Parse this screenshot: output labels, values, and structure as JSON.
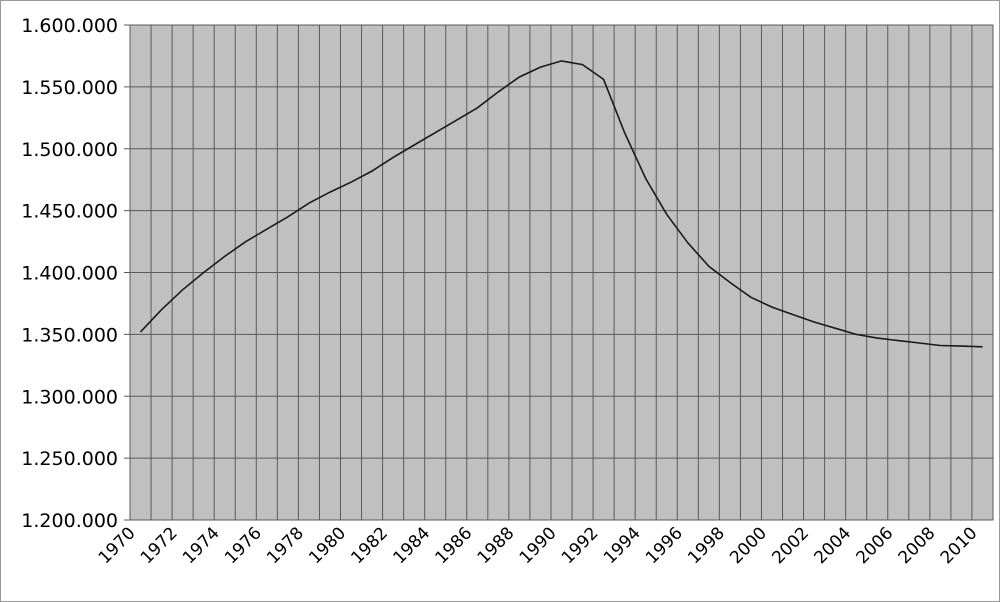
{
  "chart_data": {
    "type": "line",
    "title": "",
    "xlabel": "",
    "ylabel": "",
    "grid": true,
    "plot_background": "#c0c0c0",
    "line_color": "#1a1a1a",
    "x_ticks": [
      "1970",
      "1972",
      "1974",
      "1976",
      "1978",
      "1980",
      "1982",
      "1984",
      "1986",
      "1988",
      "1990",
      "1992",
      "1994",
      "1996",
      "1998",
      "2000",
      "2002",
      "2004",
      "2006",
      "2008",
      "2010"
    ],
    "y_ticks": [
      "1.200.000",
      "1.250.000",
      "1.300.000",
      "1.350.000",
      "1.400.000",
      "1.450.000",
      "1.500.000",
      "1.550.000",
      "1.600.000"
    ],
    "xlim": [
      1970,
      2011
    ],
    "ylim": [
      1200000,
      1600000
    ],
    "series": [
      {
        "x": [
          1970,
          1971,
          1972,
          1973,
          1974,
          1975,
          1976,
          1977,
          1978,
          1979,
          1980,
          1981,
          1982,
          1983,
          1984,
          1985,
          1986,
          1987,
          1988,
          1989,
          1990,
          1991,
          1992,
          1993,
          1994,
          1995,
          1996,
          1997,
          1998,
          1999,
          2000,
          2001,
          2002,
          2003,
          2004,
          2005,
          2006,
          2007,
          2008,
          2009,
          2010
        ],
        "values": [
          1352000,
          1370000,
          1386000,
          1400000,
          1413000,
          1425000,
          1435000,
          1445000,
          1456000,
          1465000,
          1473000,
          1482000,
          1493000,
          1503000,
          1513000,
          1523000,
          1533000,
          1546000,
          1558000,
          1566000,
          1571000,
          1568000,
          1556000,
          1513000,
          1476000,
          1447000,
          1424000,
          1405000,
          1392000,
          1380000,
          1372000,
          1366000,
          1360000,
          1355000,
          1350000,
          1347000,
          1345000,
          1343000,
          1341000,
          1340500,
          1340000
        ]
      }
    ]
  }
}
